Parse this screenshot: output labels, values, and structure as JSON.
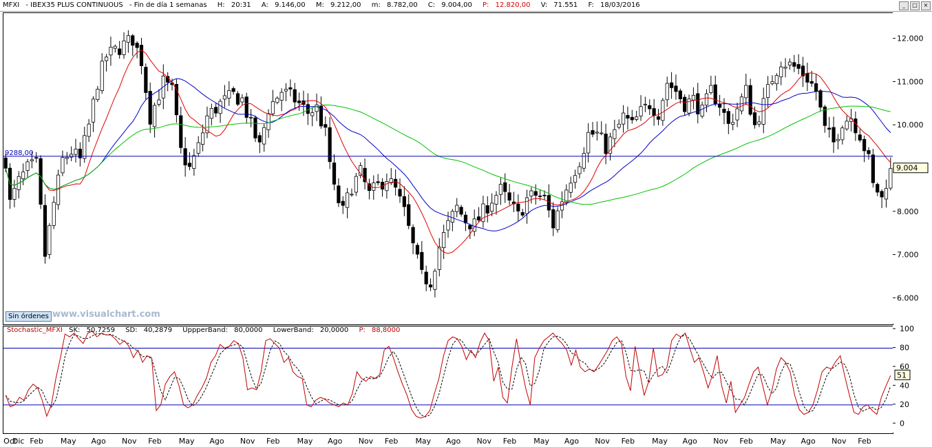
{
  "header": {
    "symbol": "MFXI",
    "name": "IBEX35 PLUS CONTINUOUS",
    "frequency": "Fin de día 1 semanas",
    "hour_label": "H:",
    "hour_value": "20:31",
    "open_label": "A:",
    "open_value": "9.146,00",
    "high_label": "M:",
    "high_value": "9.212,00",
    "low_label": "m:",
    "low_value": "8.782,00",
    "close_label": "C:",
    "close_value": "9.004,00",
    "points_label": "P:",
    "points_value": "12.820,00",
    "volume_label": "V:",
    "volume_value": "71.551",
    "date_label": "F:",
    "date_value": "18/03/2016"
  },
  "window_buttons": {
    "minimize": "_",
    "restore": "□",
    "close": "×"
  },
  "watermark": "www.visualchart.com",
  "orders_button": "Sin órdenes",
  "horizontal_line_label": "9288,00",
  "last_price_tag": "9.004",
  "indicator": {
    "name": "Stochastic_MFXI",
    "sk_label": "SK:",
    "sk_value": "50,7259",
    "sd_label": "SD:",
    "sd_value": "40,2879",
    "upper_label": "UppperBand:",
    "upper_value": "80,0000",
    "lower_label": "LowerBand:",
    "lower_value": "20,0000",
    "p_label": "P:",
    "p_value": "88,8000",
    "last_tag": "51"
  },
  "colors": {
    "candles": "#000000",
    "ma_red": "#e00000",
    "ma_blue": "#0000cc",
    "ma_green": "#00c000",
    "hline": "#0000b0",
    "stoch_k": "#c00000",
    "stoch_d": "#000000",
    "bands": "#0000b0",
    "label_red": "#c00000",
    "header_red": "#d00000"
  },
  "chart_data": [
    {
      "type": "candlestick",
      "title": "MFXI - IBEX35 PLUS CONTINUOUS",
      "yticks": [
        6000,
        7000,
        8000,
        9000,
        10000,
        11000,
        12000
      ],
      "ytick_labels": [
        "6.000",
        "7.000",
        "8.000",
        "9.000",
        "10.000",
        "11.000",
        "12.000"
      ],
      "ylim": [
        5400,
        12600
      ],
      "hline": 9288,
      "x_labels": [
        "Oct",
        "Dic",
        "Feb",
        "May",
        "Ago",
        "Nov",
        "Feb",
        "May",
        "Ago",
        "Nov",
        "Feb",
        "May",
        "Ago",
        "Nov",
        "Feb",
        "May",
        "Ago",
        "Nov",
        "Feb",
        "May",
        "Ago",
        "Nov",
        "Feb",
        "May",
        "Ago",
        "Nov",
        "Feb",
        "May",
        "Ago",
        "Nov",
        "Feb"
      ],
      "x_label_pos": [
        0,
        2,
        6,
        13,
        20,
        27,
        33,
        40,
        47,
        54,
        60,
        67,
        74,
        81,
        87,
        94,
        101,
        108,
        114,
        121,
        128,
        135,
        141,
        148,
        155,
        162,
        168,
        175,
        182,
        189,
        195
      ],
      "n": 198,
      "anchors": [
        [
          0,
          9200
        ],
        [
          1,
          8200
        ],
        [
          3,
          8700
        ],
        [
          5,
          9000
        ],
        [
          7,
          9100
        ],
        [
          9,
          7000
        ],
        [
          11,
          8200
        ],
        [
          13,
          9200
        ],
        [
          15,
          9400
        ],
        [
          17,
          9200
        ],
        [
          19,
          10000
        ],
        [
          21,
          11000
        ],
        [
          23,
          11600
        ],
        [
          26,
          11800
        ],
        [
          29,
          12000
        ],
        [
          31,
          11500
        ],
        [
          33,
          10200
        ],
        [
          36,
          11000
        ],
        [
          38,
          10800
        ],
        [
          40,
          9400
        ],
        [
          42,
          9000
        ],
        [
          44,
          9500
        ],
        [
          46,
          10200
        ],
        [
          49,
          10500
        ],
        [
          52,
          10700
        ],
        [
          54,
          10600
        ],
        [
          56,
          10000
        ],
        [
          58,
          9500
        ],
        [
          60,
          10400
        ],
        [
          63,
          10800
        ],
        [
          66,
          10600
        ],
        [
          69,
          10300
        ],
        [
          71,
          10400
        ],
        [
          73,
          9800
        ],
        [
          75,
          8500
        ],
        [
          77,
          8000
        ],
        [
          79,
          8600
        ],
        [
          81,
          8900
        ],
        [
          83,
          8400
        ],
        [
          85,
          8600
        ],
        [
          87,
          8800
        ],
        [
          89,
          8500
        ],
        [
          91,
          8000
        ],
        [
          93,
          7200
        ],
        [
          95,
          6500
        ],
        [
          97,
          6400
        ],
        [
          99,
          7200
        ],
        [
          101,
          7700
        ],
        [
          103,
          8100
        ],
        [
          105,
          7800
        ],
        [
          107,
          7700
        ],
        [
          109,
          8000
        ],
        [
          111,
          8300
        ],
        [
          113,
          8500
        ],
        [
          115,
          8200
        ],
        [
          117,
          7900
        ],
        [
          119,
          8300
        ],
        [
          121,
          8400
        ],
        [
          123,
          8300
        ],
        [
          125,
          7700
        ],
        [
          127,
          8300
        ],
        [
          129,
          8800
        ],
        [
          131,
          9200
        ],
        [
          133,
          9800
        ],
        [
          135,
          9800
        ],
        [
          137,
          9500
        ],
        [
          139,
          9800
        ],
        [
          141,
          10200
        ],
        [
          143,
          10000
        ],
        [
          145,
          10300
        ],
        [
          147,
          10500
        ],
        [
          149,
          10300
        ],
        [
          151,
          11000
        ],
        [
          153,
          10800
        ],
        [
          155,
          10500
        ],
        [
          157,
          10600
        ],
        [
          159,
          10300
        ],
        [
          161,
          10800
        ],
        [
          163,
          10500
        ],
        [
          165,
          10000
        ],
        [
          167,
          10400
        ],
        [
          169,
          10800
        ],
        [
          171,
          10000
        ],
        [
          173,
          10500
        ],
        [
          175,
          11100
        ],
        [
          177,
          11500
        ],
        [
          179,
          11400
        ],
        [
          181,
          11300
        ],
        [
          183,
          11100
        ],
        [
          185,
          10800
        ],
        [
          187,
          9900
        ],
        [
          189,
          9600
        ],
        [
          191,
          10100
        ],
        [
          193,
          10200
        ],
        [
          195,
          9800
        ],
        [
          197,
          9200
        ],
        [
          198,
          8600
        ],
        [
          199,
          8500
        ],
        [
          200,
          8300
        ],
        [
          201,
          8700
        ],
        [
          202,
          9000
        ]
      ],
      "series": [
        {
          "name": "MA-red",
          "color": "#e00000",
          "period": 10
        },
        {
          "name": "MA-blue",
          "color": "#0000cc",
          "period": 22
        },
        {
          "name": "MA-green",
          "color": "#00c000",
          "period": 60
        }
      ],
      "last_close": 9004
    },
    {
      "type": "line",
      "title": "Stochastic_MFXI",
      "yticks": [
        0,
        20,
        40,
        60,
        80,
        100
      ],
      "ylim": [
        -10,
        103
      ],
      "bands": [
        20,
        80
      ],
      "k_anchors": [
        [
          0,
          30
        ],
        [
          1,
          18
        ],
        [
          2,
          20
        ],
        [
          3,
          28
        ],
        [
          4,
          25
        ],
        [
          5,
          36
        ],
        [
          6,
          42
        ],
        [
          7,
          38
        ],
        [
          8,
          25
        ],
        [
          9,
          8
        ],
        [
          10,
          20
        ],
        [
          11,
          48
        ],
        [
          12,
          70
        ],
        [
          13,
          95
        ],
        [
          14,
          92
        ],
        [
          15,
          96
        ],
        [
          16,
          90
        ],
        [
          17,
          85
        ],
        [
          18,
          96
        ],
        [
          19,
          98
        ],
        [
          20,
          92
        ],
        [
          21,
          96
        ],
        [
          22,
          94
        ],
        [
          23,
          94
        ],
        [
          24,
          90
        ],
        [
          25,
          84
        ],
        [
          26,
          88
        ],
        [
          27,
          82
        ],
        [
          28,
          70
        ],
        [
          29,
          78
        ],
        [
          30,
          65
        ],
        [
          31,
          72
        ],
        [
          32,
          70
        ],
        [
          33,
          14
        ],
        [
          34,
          20
        ],
        [
          35,
          42
        ],
        [
          36,
          50
        ],
        [
          37,
          55
        ],
        [
          38,
          40
        ],
        [
          39,
          20
        ],
        [
          40,
          17
        ],
        [
          41,
          20
        ],
        [
          42,
          30
        ],
        [
          43,
          38
        ],
        [
          44,
          48
        ],
        [
          45,
          65
        ],
        [
          46,
          72
        ],
        [
          47,
          84
        ],
        [
          48,
          80
        ],
        [
          49,
          82
        ],
        [
          50,
          88
        ],
        [
          51,
          85
        ],
        [
          52,
          70
        ],
        [
          53,
          36
        ],
        [
          54,
          38
        ],
        [
          55,
          36
        ],
        [
          56,
          55
        ],
        [
          57,
          88
        ],
        [
          58,
          90
        ],
        [
          59,
          85
        ],
        [
          60,
          80
        ],
        [
          61,
          65
        ],
        [
          62,
          70
        ],
        [
          63,
          55
        ],
        [
          64,
          50
        ],
        [
          65,
          48
        ],
        [
          66,
          20
        ],
        [
          67,
          18
        ],
        [
          68,
          25
        ],
        [
          69,
          28
        ],
        [
          70,
          26
        ],
        [
          71,
          22
        ],
        [
          72,
          20
        ],
        [
          73,
          18
        ],
        [
          74,
          22
        ],
        [
          75,
          20
        ],
        [
          76,
          32
        ],
        [
          77,
          55
        ],
        [
          78,
          48
        ],
        [
          79,
          45
        ],
        [
          80,
          50
        ],
        [
          81,
          48
        ],
        [
          82,
          52
        ],
        [
          83,
          78
        ],
        [
          84,
          82
        ],
        [
          85,
          70
        ],
        [
          86,
          55
        ],
        [
          87,
          42
        ],
        [
          88,
          30
        ],
        [
          89,
          15
        ],
        [
          90,
          8
        ],
        [
          91,
          6
        ],
        [
          92,
          8
        ],
        [
          93,
          14
        ],
        [
          94,
          32
        ],
        [
          95,
          48
        ],
        [
          96,
          72
        ],
        [
          97,
          88
        ],
        [
          98,
          92
        ],
        [
          99,
          90
        ],
        [
          100,
          82
        ],
        [
          101,
          68
        ],
        [
          102,
          78
        ],
        [
          103,
          70
        ],
        [
          104,
          86
        ],
        [
          105,
          96
        ],
        [
          106,
          88
        ],
        [
          107,
          45
        ],
        [
          108,
          60
        ],
        [
          109,
          28
        ],
        [
          110,
          22
        ],
        [
          111,
          60
        ],
        [
          112,
          90
        ],
        [
          113,
          62
        ],
        [
          114,
          38
        ],
        [
          115,
          20
        ],
        [
          116,
          70
        ],
        [
          117,
          80
        ],
        [
          118,
          88
        ],
        [
          119,
          92
        ],
        [
          120,
          96
        ],
        [
          121,
          90
        ],
        [
          122,
          85
        ],
        [
          123,
          78
        ],
        [
          124,
          62
        ],
        [
          125,
          78
        ],
        [
          126,
          60
        ],
        [
          127,
          55
        ],
        [
          128,
          58
        ],
        [
          129,
          55
        ],
        [
          130,
          62
        ],
        [
          131,
          70
        ],
        [
          132,
          78
        ],
        [
          133,
          88
        ],
        [
          134,
          92
        ],
        [
          135,
          85
        ],
        [
          136,
          50
        ],
        [
          137,
          35
        ],
        [
          138,
          82
        ],
        [
          139,
          55
        ],
        [
          140,
          30
        ],
        [
          141,
          45
        ],
        [
          142,
          80
        ],
        [
          143,
          50
        ],
        [
          144,
          52
        ],
        [
          145,
          60
        ],
        [
          146,
          88
        ],
        [
          147,
          95
        ],
        [
          148,
          92
        ],
        [
          149,
          96
        ],
        [
          150,
          80
        ],
        [
          151,
          65
        ],
        [
          152,
          70
        ],
        [
          153,
          55
        ],
        [
          154,
          38
        ],
        [
          155,
          52
        ],
        [
          156,
          72
        ],
        [
          157,
          40
        ],
        [
          158,
          22
        ],
        [
          159,
          45
        ],
        [
          160,
          12
        ],
        [
          161,
          20
        ],
        [
          162,
          28
        ],
        [
          163,
          42
        ],
        [
          164,
          55
        ],
        [
          165,
          60
        ],
        [
          166,
          40
        ],
        [
          167,
          20
        ],
        [
          168,
          35
        ],
        [
          169,
          58
        ],
        [
          170,
          70
        ],
        [
          171,
          65
        ],
        [
          172,
          55
        ],
        [
          173,
          30
        ],
        [
          174,
          15
        ],
        [
          175,
          10
        ],
        [
          176,
          12
        ],
        [
          177,
          20
        ],
        [
          178,
          36
        ],
        [
          179,
          55
        ],
        [
          180,
          60
        ],
        [
          181,
          58
        ],
        [
          182,
          66
        ],
        [
          183,
          72
        ],
        [
          184,
          50
        ],
        [
          185,
          30
        ],
        [
          186,
          12
        ],
        [
          187,
          10
        ],
        [
          188,
          18
        ],
        [
          189,
          20
        ],
        [
          190,
          14
        ],
        [
          191,
          10
        ],
        [
          192,
          28
        ],
        [
          193,
          40
        ],
        [
          194,
          51
        ]
      ],
      "last_k": 51
    }
  ]
}
